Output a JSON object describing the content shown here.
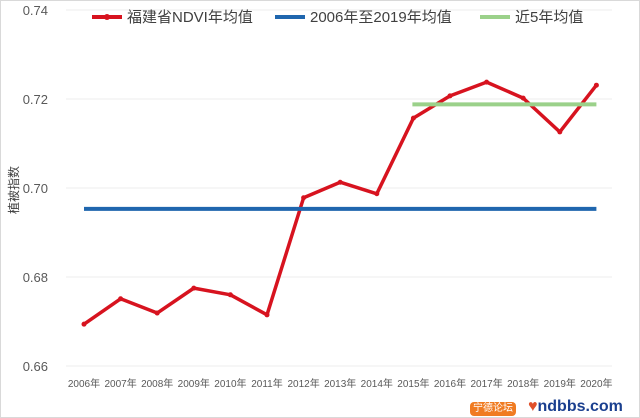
{
  "chart_data": {
    "type": "line",
    "title": "",
    "xlabel": "",
    "ylabel": "植被指数",
    "ylim": [
      0.66,
      0.74
    ],
    "yticks": [
      "0.66",
      "0.68",
      "0.70",
      "0.72",
      "0.74"
    ],
    "categories": [
      "2006年",
      "2007年",
      "2008年",
      "2009年",
      "2010年",
      "2011年",
      "2012年",
      "2013年",
      "2014年",
      "2015年",
      "2016年",
      "2017年",
      "2018年",
      "2019年",
      "2020年"
    ],
    "grid": true,
    "legend_position": "top",
    "series": [
      {
        "name": "福建省NDVI年均值",
        "color": "#d7131f",
        "marker": "circle",
        "values": [
          0.6694,
          0.6751,
          0.6719,
          0.6775,
          0.676,
          0.6715,
          0.6978,
          0.7013,
          0.6987,
          0.7157,
          0.7207,
          0.7238,
          0.7202,
          0.7126,
          0.7231
        ]
      },
      {
        "name": "2006年至2019年均值",
        "color": "#1f66ae",
        "constant": 0.6953,
        "from": "2006年",
        "to": "2020年"
      },
      {
        "name": "近5年均值",
        "color": "#9bd18a",
        "constant": 0.7188,
        "from": "2015年",
        "to": "2020年"
      }
    ]
  },
  "watermark": {
    "text": "ndbbs.com",
    "badge": "宁德论坛"
  }
}
